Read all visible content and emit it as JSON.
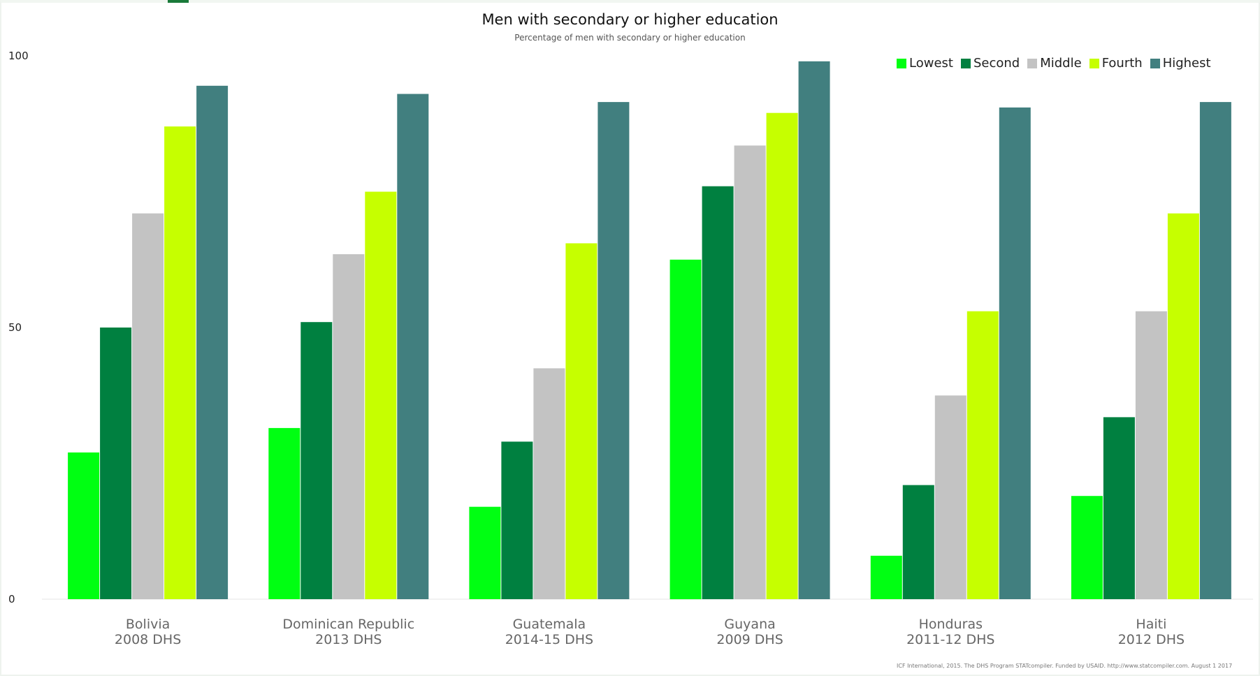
{
  "chart_data": {
    "type": "bar",
    "title": "Men with secondary or higher education",
    "subtitle": "Percentage of men with secondary or higher education",
    "xlabel": "",
    "ylabel": "",
    "ylim": [
      0,
      100
    ],
    "yticks": [
      "0",
      "50",
      "100"
    ],
    "legend_position": "top-right",
    "grid": false,
    "categories": [
      [
        "Bolivia",
        "2008 DHS"
      ],
      [
        "Dominican Republic",
        "2013 DHS"
      ],
      [
        "Guatemala",
        "2014-15 DHS"
      ],
      [
        "Guyana",
        "2009 DHS"
      ],
      [
        "Honduras",
        "2011-12 DHS"
      ],
      [
        "Haiti",
        "2012 DHS"
      ]
    ],
    "series": [
      {
        "name": "Lowest",
        "color": "#00ff12",
        "values": [
          27,
          31.5,
          17,
          62.5,
          8,
          19
        ]
      },
      {
        "name": "Second",
        "color": "#008040",
        "values": [
          50,
          51,
          29,
          76,
          21,
          33.5
        ]
      },
      {
        "name": "Middle",
        "color": "#c3c3c3",
        "values": [
          71,
          63.5,
          42.5,
          83.5,
          37.5,
          53
        ]
      },
      {
        "name": "Fourth",
        "color": "#c6ff00",
        "values": [
          87,
          75,
          65.5,
          89.5,
          53,
          71
        ]
      },
      {
        "name": "Highest",
        "color": "#417f7f",
        "values": [
          94.5,
          93,
          91.5,
          99,
          90.5,
          91.5
        ]
      }
    ]
  },
  "source_note": "ICF International, 2015. The DHS Program STATcompiler. Funded by USAID. http://www.statcompiler.com. August 1 2017"
}
